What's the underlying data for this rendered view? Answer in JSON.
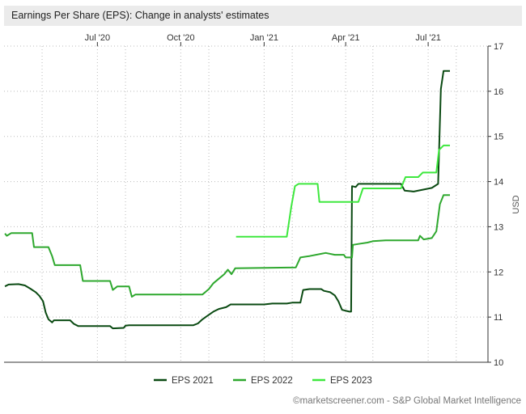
{
  "title": "Earnings Per Share (EPS): Change in analysts' estimates",
  "credit": "©marketscreener.com - S&P Global Market Intelligence",
  "chart_data": {
    "type": "line",
    "title": "Earnings Per Share (EPS): Change in analysts' estimates",
    "ylabel": "USD",
    "xlabel": "",
    "x_axis_position": "top",
    "y_axis_position": "right",
    "grid": true,
    "legend_position": "bottom",
    "xlim": [
      "2020-03-20",
      "2021-09-05"
    ],
    "ylim": [
      10,
      17
    ],
    "x_ticks": [
      {
        "date": "2020-07-01",
        "label": "Jul '20"
      },
      {
        "date": "2020-10-01",
        "label": "Oct '20"
      },
      {
        "date": "2021-01-01",
        "label": "Jan '21"
      },
      {
        "date": "2021-04-01",
        "label": "Apr '21"
      },
      {
        "date": "2021-07-01",
        "label": "Jul '21"
      }
    ],
    "y_ticks": [
      10,
      11,
      12,
      13,
      14,
      15,
      16,
      17
    ],
    "series": [
      {
        "name": "EPS 2021",
        "color": "#0a4a12",
        "points": [
          [
            "2020-03-21",
            11.68
          ],
          [
            "2020-03-25",
            11.72
          ],
          [
            "2020-04-05",
            11.73
          ],
          [
            "2020-04-12",
            11.7
          ],
          [
            "2020-04-18",
            11.63
          ],
          [
            "2020-04-24",
            11.55
          ],
          [
            "2020-04-28",
            11.47
          ],
          [
            "2020-05-02",
            11.35
          ],
          [
            "2020-05-05",
            11.1
          ],
          [
            "2020-05-08",
            10.95
          ],
          [
            "2020-05-12",
            10.88
          ],
          [
            "2020-05-14",
            10.93
          ],
          [
            "2020-06-01",
            10.93
          ],
          [
            "2020-06-05",
            10.85
          ],
          [
            "2020-06-10",
            10.8
          ],
          [
            "2020-07-15",
            10.8
          ],
          [
            "2020-07-18",
            10.75
          ],
          [
            "2020-07-30",
            10.76
          ],
          [
            "2020-08-01",
            10.81
          ],
          [
            "2020-08-05",
            10.82
          ],
          [
            "2020-10-15",
            10.82
          ],
          [
            "2020-10-20",
            10.86
          ],
          [
            "2020-10-25",
            10.95
          ],
          [
            "2020-11-01",
            11.05
          ],
          [
            "2020-11-06",
            11.12
          ],
          [
            "2020-11-12",
            11.18
          ],
          [
            "2020-11-20",
            11.22
          ],
          [
            "2020-11-25",
            11.28
          ],
          [
            "2020-12-20",
            11.28
          ],
          [
            "2021-01-01",
            11.28
          ],
          [
            "2021-01-10",
            11.3
          ],
          [
            "2021-01-26",
            11.3
          ],
          [
            "2021-02-01",
            11.32
          ],
          [
            "2021-02-10",
            11.32
          ],
          [
            "2021-02-13",
            11.6
          ],
          [
            "2021-02-20",
            11.62
          ],
          [
            "2021-03-05",
            11.62
          ],
          [
            "2021-03-08",
            11.58
          ],
          [
            "2021-03-15",
            11.55
          ],
          [
            "2021-03-20",
            11.48
          ],
          [
            "2021-03-24",
            11.35
          ],
          [
            "2021-03-28",
            11.16
          ],
          [
            "2021-04-05",
            11.12
          ],
          [
            "2021-04-07",
            11.12
          ],
          [
            "2021-04-08",
            13.9
          ],
          [
            "2021-04-12",
            13.88
          ],
          [
            "2021-04-15",
            13.95
          ],
          [
            "2021-06-01",
            13.95
          ],
          [
            "2021-06-05",
            13.8
          ],
          [
            "2021-06-15",
            13.78
          ],
          [
            "2021-06-25",
            13.82
          ],
          [
            "2021-07-05",
            13.86
          ],
          [
            "2021-07-12",
            13.95
          ],
          [
            "2021-07-15",
            16.05
          ],
          [
            "2021-07-18",
            16.45
          ],
          [
            "2021-07-25",
            16.45
          ]
        ]
      },
      {
        "name": "EPS 2022",
        "color": "#2ea82e",
        "points": [
          [
            "2020-03-21",
            12.85
          ],
          [
            "2020-03-23",
            12.8
          ],
          [
            "2020-03-28",
            12.86
          ],
          [
            "2020-04-20",
            12.86
          ],
          [
            "2020-04-22",
            12.55
          ],
          [
            "2020-05-08",
            12.55
          ],
          [
            "2020-05-12",
            12.35
          ],
          [
            "2020-05-15",
            12.15
          ],
          [
            "2020-06-12",
            12.15
          ],
          [
            "2020-06-15",
            11.8
          ],
          [
            "2020-07-15",
            11.8
          ],
          [
            "2020-07-18",
            11.6
          ],
          [
            "2020-07-23",
            11.68
          ],
          [
            "2020-08-05",
            11.68
          ],
          [
            "2020-08-08",
            11.45
          ],
          [
            "2020-08-12",
            11.5
          ],
          [
            "2020-10-25",
            11.5
          ],
          [
            "2020-11-01",
            11.62
          ],
          [
            "2020-11-06",
            11.75
          ],
          [
            "2020-11-12",
            11.85
          ],
          [
            "2020-11-18",
            11.95
          ],
          [
            "2020-11-22",
            12.05
          ],
          [
            "2020-11-26",
            11.95
          ],
          [
            "2020-11-30",
            12.08
          ],
          [
            "2021-02-05",
            12.1
          ],
          [
            "2021-02-10",
            12.32
          ],
          [
            "2021-02-20",
            12.35
          ],
          [
            "2021-03-05",
            12.4
          ],
          [
            "2021-03-10",
            12.42
          ],
          [
            "2021-03-20",
            12.38
          ],
          [
            "2021-03-30",
            12.38
          ],
          [
            "2021-04-01",
            12.32
          ],
          [
            "2021-04-08",
            12.32
          ],
          [
            "2021-04-09",
            12.6
          ],
          [
            "2021-04-15",
            12.62
          ],
          [
            "2021-04-25",
            12.65
          ],
          [
            "2021-05-01",
            12.68
          ],
          [
            "2021-05-15",
            12.7
          ],
          [
            "2021-06-20",
            12.7
          ],
          [
            "2021-06-22",
            12.8
          ],
          [
            "2021-06-26",
            12.72
          ],
          [
            "2021-07-05",
            12.75
          ],
          [
            "2021-07-10",
            12.9
          ],
          [
            "2021-07-14",
            13.5
          ],
          [
            "2021-07-18",
            13.7
          ],
          [
            "2021-07-25",
            13.7
          ]
        ]
      },
      {
        "name": "EPS 2023",
        "color": "#3ee83e",
        "points": [
          [
            "2020-12-01",
            12.78
          ],
          [
            "2021-01-26",
            12.78
          ],
          [
            "2021-01-31",
            13.45
          ],
          [
            "2021-02-04",
            13.9
          ],
          [
            "2021-02-08",
            13.95
          ],
          [
            "2021-03-01",
            13.95
          ],
          [
            "2021-03-03",
            13.55
          ],
          [
            "2021-04-15",
            13.55
          ],
          [
            "2021-04-20",
            13.85
          ],
          [
            "2021-06-01",
            13.85
          ],
          [
            "2021-06-06",
            14.1
          ],
          [
            "2021-06-20",
            14.1
          ],
          [
            "2021-06-25",
            14.2
          ],
          [
            "2021-07-10",
            14.2
          ],
          [
            "2021-07-13",
            14.7
          ],
          [
            "2021-07-18",
            14.8
          ],
          [
            "2021-07-25",
            14.8
          ]
        ]
      }
    ]
  }
}
